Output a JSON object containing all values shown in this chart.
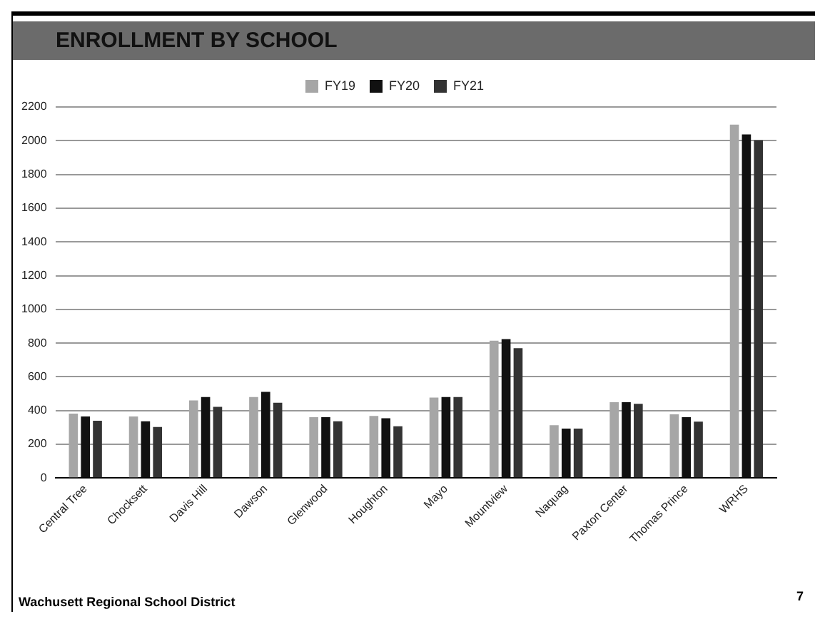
{
  "chart_data": {
    "type": "bar",
    "title": "ENROLLMENT BY SCHOOL",
    "categories": [
      "Central Tree",
      "Chocksett",
      "Davis Hill",
      "Dawson",
      "Glenwood",
      "Houghton",
      "Mayo",
      "Mountview",
      "Naquag",
      "Paxton Center",
      "Thomas Prince",
      "WRHS"
    ],
    "series": [
      {
        "name": "FY19",
        "color": "#a6a6a6",
        "values": [
          382,
          365,
          460,
          480,
          361,
          368,
          477,
          814,
          313,
          450,
          378,
          2095
        ]
      },
      {
        "name": "FY20",
        "color": "#111111",
        "values": [
          365,
          337,
          480,
          511,
          361,
          354,
          480,
          824,
          293,
          450,
          361,
          2037
        ]
      },
      {
        "name": "FY21",
        "color": "#333333",
        "values": [
          340,
          303,
          422,
          446,
          337,
          307,
          480,
          770,
          293,
          440,
          334,
          2003
        ]
      }
    ],
    "ylim": [
      0,
      2200
    ],
    "yticks": [
      0,
      200,
      400,
      600,
      800,
      1000,
      1200,
      1400,
      1600,
      1800,
      2000,
      2200
    ],
    "grid": "y",
    "legend": "top",
    "annotations": [
      "Wachusett Regional School District",
      "7"
    ]
  }
}
